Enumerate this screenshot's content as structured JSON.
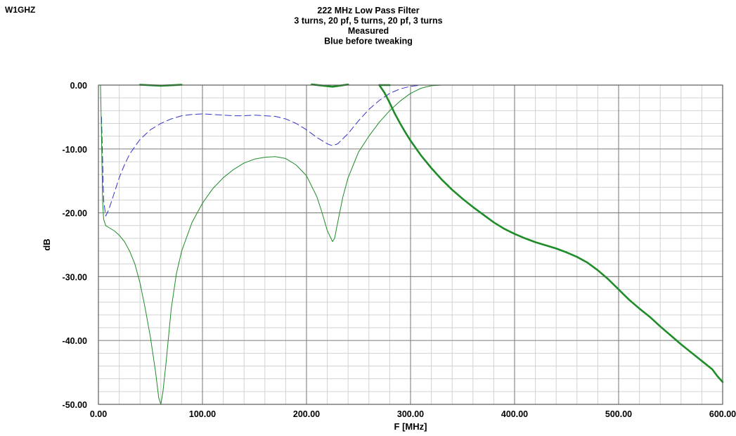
{
  "header": {
    "callsign": "W1GHZ"
  },
  "chart_data": {
    "type": "line",
    "title_lines": [
      "222 MHz Low Pass Filter",
      "3 turns, 20 pf, 5 turns, 20 pf, 3 turns",
      "Measured",
      "Blue before tweaking"
    ],
    "xlabel": "F [MHz]",
    "ylabel": "dB",
    "xlim": [
      0,
      600
    ],
    "ylim": [
      -50,
      0
    ],
    "x_major_ticks": [
      0,
      100,
      200,
      300,
      400,
      500,
      600
    ],
    "x_tick_labels": [
      "0.00",
      "100.00",
      "200.00",
      "300.00",
      "400.00",
      "500.00",
      "600.00"
    ],
    "y_major_ticks": [
      0,
      -10,
      -20,
      -30,
      -40,
      -50
    ],
    "y_tick_labels": [
      "0.00",
      "-10.00",
      "-20.00",
      "-30.00",
      "-40.00",
      "-50.00"
    ],
    "x_minor_step": 20,
    "y_minor_step": 2,
    "grid": true,
    "series": [
      {
        "key": "blue_before",
        "color": "#3333cc",
        "style": "dashed",
        "width": 1,
        "x": [
          3,
          5,
          7,
          10,
          15,
          20,
          25,
          30,
          40,
          50,
          60,
          70,
          80,
          90,
          100,
          110,
          120,
          130,
          140,
          150,
          160,
          170,
          180,
          190,
          200,
          210,
          220,
          225,
          230,
          240,
          250,
          260,
          270,
          280,
          290,
          300,
          310,
          320,
          330,
          340,
          360,
          380,
          400,
          410
        ],
        "y": [
          -5,
          -18,
          -20.5,
          -19.5,
          -17,
          -14.5,
          -12.5,
          -10.8,
          -8.5,
          -7,
          -6,
          -5.3,
          -4.8,
          -4.6,
          -4.5,
          -4.6,
          -4.7,
          -4.8,
          -4.8,
          -4.7,
          -4.8,
          -4.9,
          -5.3,
          -6,
          -7,
          -8.2,
          -9.2,
          -9.5,
          -9.2,
          -7.6,
          -5.6,
          -3.8,
          -2.4,
          -1.3,
          -0.6,
          -0.2,
          0,
          0,
          0,
          0,
          0,
          0,
          0,
          0
        ]
      },
      {
        "key": "green_s21",
        "color": "#1e8c28",
        "style": "solid",
        "width": 2.6,
        "x": [
          270,
          275,
          280,
          285,
          290,
          295,
          300,
          310,
          320,
          330,
          340,
          350,
          360,
          370,
          380,
          390,
          400,
          410,
          420,
          430,
          440,
          450,
          460,
          470,
          480,
          490,
          500,
          510,
          520,
          530,
          540,
          550,
          560,
          570,
          580,
          590,
          595,
          600
        ],
        "y": [
          0,
          -1.2,
          -2.8,
          -4.5,
          -6,
          -7.4,
          -8.7,
          -11,
          -13,
          -14.8,
          -16.4,
          -17.8,
          -19.1,
          -20.3,
          -21.5,
          -22.5,
          -23.3,
          -24,
          -24.6,
          -25.1,
          -25.6,
          -26.2,
          -26.9,
          -27.8,
          -29,
          -30.4,
          -32,
          -33.6,
          -35,
          -36.3,
          -37.8,
          -39.2,
          -40.6,
          -41.9,
          -43.2,
          -44.5,
          -45.6,
          -46.5
        ]
      },
      {
        "key": "green_s11",
        "color": "#1e8c28",
        "style": "solid",
        "width": 1,
        "x": [
          2,
          3,
          4,
          5,
          7,
          10,
          15,
          20,
          25,
          30,
          35,
          40,
          45,
          50,
          55,
          58,
          60,
          62,
          65,
          70,
          75,
          80,
          90,
          100,
          110,
          120,
          130,
          140,
          150,
          160,
          170,
          180,
          190,
          200,
          210,
          215,
          220,
          225,
          227,
          230,
          235,
          240,
          250,
          260,
          270,
          280,
          290,
          300,
          310,
          320,
          330
        ],
        "y": [
          0,
          -8,
          -18,
          -21,
          -22,
          -22.3,
          -22.8,
          -23.5,
          -24.5,
          -26,
          -28,
          -31,
          -35,
          -39.5,
          -45,
          -49,
          -50,
          -48,
          -43.5,
          -35,
          -29.5,
          -26,
          -21.5,
          -18.5,
          -16.2,
          -14.5,
          -13.2,
          -12.2,
          -11.6,
          -11.3,
          -11.2,
          -11.5,
          -12.5,
          -14.2,
          -17.5,
          -20,
          -22.8,
          -24.5,
          -24,
          -21.5,
          -17.5,
          -14.5,
          -10.5,
          -8,
          -5.8,
          -4,
          -2.5,
          -1.3,
          -0.5,
          -0.1,
          0
        ]
      },
      {
        "key": "green_zero_segments",
        "color": "#1e8c28",
        "style": "solid",
        "width": 2.6,
        "segments": [
          [
            [
              40,
              0.05
            ],
            [
              60,
              -0.1
            ],
            [
              80,
              0.05
            ]
          ],
          [
            [
              205,
              0.1
            ],
            [
              225,
              -0.25
            ],
            [
              240,
              0.1
            ]
          ],
          [
            [
              270,
              0
            ],
            [
              280,
              0
            ]
          ]
        ]
      }
    ]
  }
}
